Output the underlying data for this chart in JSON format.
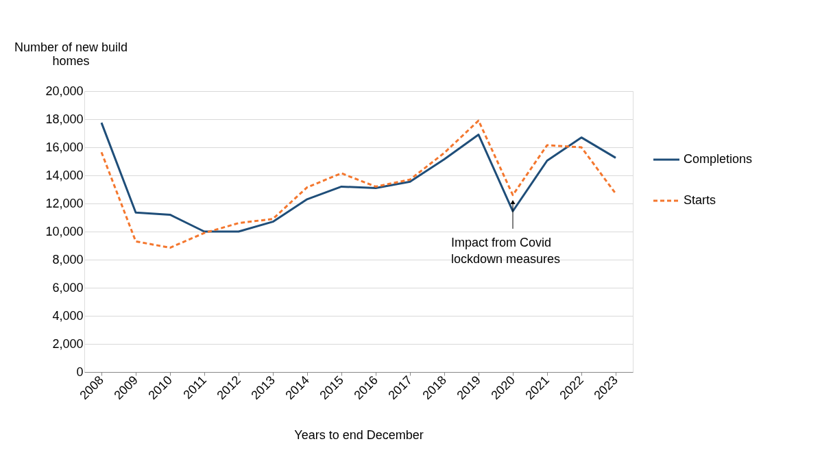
{
  "chart_data": {
    "type": "line",
    "xlabel": "Years to end December",
    "ylabel": "Number of new build homes",
    "categories": [
      "2008",
      "2009",
      "2010",
      "2011",
      "2012",
      "2013",
      "2014",
      "2015",
      "2016",
      "2017",
      "2018",
      "2019",
      "2020",
      "2021",
      "2022",
      "2023"
    ],
    "series": [
      {
        "name": "Completions",
        "color": "#1f4e79",
        "line_style": "solid",
        "values": [
          17750,
          11350,
          11200,
          10000,
          10000,
          10700,
          12300,
          13200,
          13100,
          13550,
          15150,
          16900,
          11450,
          15050,
          16700,
          15250
        ]
      },
      {
        "name": "Starts",
        "color": "#f4772e",
        "line_style": "dashed",
        "values": [
          15650,
          9300,
          8850,
          9900,
          10600,
          10900,
          13150,
          14150,
          13200,
          13700,
          15600,
          17900,
          12600,
          16150,
          16000,
          12700
        ]
      }
    ],
    "ylim": [
      0,
      20000
    ],
    "yticks": [
      {
        "value": 0,
        "label": "0"
      },
      {
        "value": 2000,
        "label": "2,000"
      },
      {
        "value": 4000,
        "label": "4,000"
      },
      {
        "value": 6000,
        "label": "6,000"
      },
      {
        "value": 8000,
        "label": "8,000"
      },
      {
        "value": 10000,
        "label": "10,000"
      },
      {
        "value": 12000,
        "label": "12,000"
      },
      {
        "value": 14000,
        "label": "14,000"
      },
      {
        "value": 16000,
        "label": "16,000"
      },
      {
        "value": 18000,
        "label": "18,000"
      },
      {
        "value": 20000,
        "label": "20,000"
      }
    ],
    "grid": "y",
    "legend": "right",
    "marker": "none",
    "annotations": [
      "Impact from Covid lockdown measures"
    ]
  }
}
